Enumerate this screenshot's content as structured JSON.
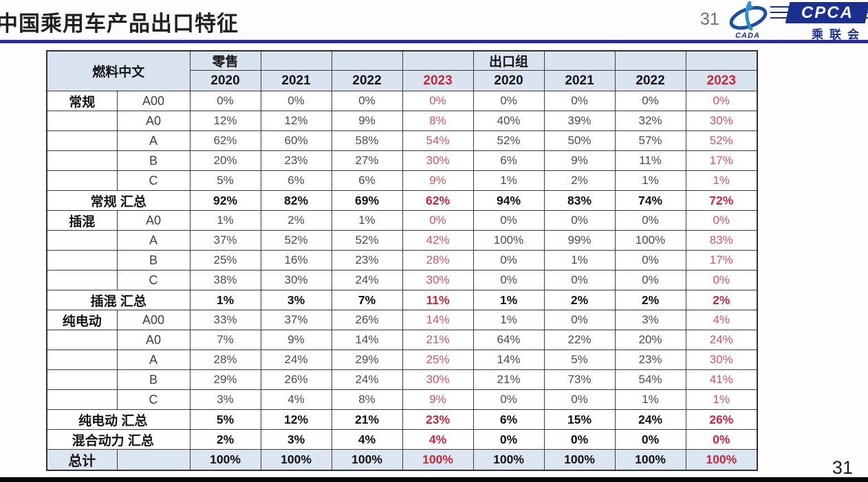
{
  "slide": {
    "title": "中国乘用车产品出口特征",
    "page_number_top": "31",
    "page_number_bottom": "31"
  },
  "logos": {
    "cada_text": "CADA",
    "cpca_acronym": "CPCA",
    "cpca_chinese": "乘联会"
  },
  "colors": {
    "divider_navy": "#2b2b91",
    "logo_navy": "#1b2f8f",
    "header_bg": "#dae3f0",
    "total_row_bg": "#dce6f3",
    "value_gray": "#4a4a4a",
    "red_bold": "#c2293c",
    "red_soft": "#cb5560"
  },
  "table": {
    "header": {
      "fuel_label": "燃料中文",
      "retail_label": "零售",
      "export_label": "出口组",
      "retail_years": [
        "2020",
        "2021",
        "2022",
        "2023"
      ],
      "export_years": [
        "2020",
        "2021",
        "2022",
        "2023"
      ]
    },
    "rows": [
      {
        "type": "group",
        "label": "常规",
        "size": "A00",
        "retail": [
          "0%",
          "0%",
          "0%",
          "0%"
        ],
        "export": [
          "0%",
          "0%",
          "0%",
          "0%"
        ]
      },
      {
        "type": "item",
        "label": "",
        "size": "A0",
        "retail": [
          "12%",
          "12%",
          "9%",
          "8%"
        ],
        "export": [
          "40%",
          "39%",
          "32%",
          "30%"
        ]
      },
      {
        "type": "item",
        "label": "",
        "size": "A",
        "retail": [
          "62%",
          "60%",
          "58%",
          "54%"
        ],
        "export": [
          "52%",
          "50%",
          "57%",
          "52%"
        ]
      },
      {
        "type": "item",
        "label": "",
        "size": "B",
        "retail": [
          "20%",
          "23%",
          "27%",
          "30%"
        ],
        "export": [
          "6%",
          "9%",
          "11%",
          "17%"
        ]
      },
      {
        "type": "item",
        "label": "",
        "size": "C",
        "retail": [
          "5%",
          "6%",
          "6%",
          "9%"
        ],
        "export": [
          "1%",
          "2%",
          "1%",
          "1%"
        ]
      },
      {
        "type": "subtotal",
        "label": "常规 汇总",
        "size": "",
        "retail": [
          "92%",
          "82%",
          "69%",
          "62%"
        ],
        "export": [
          "94%",
          "83%",
          "74%",
          "72%"
        ]
      },
      {
        "type": "group",
        "label": "插混",
        "size": "A0",
        "retail": [
          "1%",
          "2%",
          "1%",
          "0%"
        ],
        "export": [
          "0%",
          "0%",
          "0%",
          "0%"
        ]
      },
      {
        "type": "item",
        "label": "",
        "size": "A",
        "retail": [
          "37%",
          "52%",
          "52%",
          "42%"
        ],
        "export": [
          "100%",
          "99%",
          "100%",
          "83%"
        ]
      },
      {
        "type": "item",
        "label": "",
        "size": "B",
        "retail": [
          "25%",
          "16%",
          "23%",
          "28%"
        ],
        "export": [
          "0%",
          "1%",
          "0%",
          "17%"
        ]
      },
      {
        "type": "item",
        "label": "",
        "size": "C",
        "retail": [
          "38%",
          "30%",
          "24%",
          "30%"
        ],
        "export": [
          "0%",
          "0%",
          "0%",
          "0%"
        ]
      },
      {
        "type": "subtotal",
        "label": "插混 汇总",
        "size": "",
        "retail": [
          "1%",
          "3%",
          "7%",
          "11%"
        ],
        "export": [
          "1%",
          "2%",
          "2%",
          "2%"
        ]
      },
      {
        "type": "group",
        "label": "纯电动",
        "size": "A00",
        "retail": [
          "33%",
          "37%",
          "26%",
          "14%"
        ],
        "export": [
          "1%",
          "0%",
          "3%",
          "4%"
        ]
      },
      {
        "type": "item",
        "label": "",
        "size": "A0",
        "retail": [
          "7%",
          "9%",
          "14%",
          "21%"
        ],
        "export": [
          "64%",
          "22%",
          "20%",
          "24%"
        ]
      },
      {
        "type": "item",
        "label": "",
        "size": "A",
        "retail": [
          "28%",
          "24%",
          "29%",
          "25%"
        ],
        "export": [
          "14%",
          "5%",
          "23%",
          "30%"
        ]
      },
      {
        "type": "item",
        "label": "",
        "size": "B",
        "retail": [
          "29%",
          "26%",
          "24%",
          "30%"
        ],
        "export": [
          "21%",
          "73%",
          "54%",
          "41%"
        ]
      },
      {
        "type": "item",
        "label": "",
        "size": "C",
        "retail": [
          "3%",
          "4%",
          "8%",
          "9%"
        ],
        "export": [
          "0%",
          "0%",
          "1%",
          "1%"
        ]
      },
      {
        "type": "subtotal",
        "label": "纯电动 汇总",
        "size": "",
        "clip": true,
        "retail": [
          "5%",
          "12%",
          "21%",
          "23%"
        ],
        "export": [
          "6%",
          "15%",
          "24%",
          "26%"
        ]
      },
      {
        "type": "subtotal",
        "label": "混合动力 汇总",
        "size": "",
        "clip": true,
        "retail": [
          "2%",
          "3%",
          "4%",
          "4%"
        ],
        "export": [
          "0%",
          "0%",
          "0%",
          "0%"
        ]
      },
      {
        "type": "total",
        "label": "总计",
        "size": "",
        "retail": [
          "100%",
          "100%",
          "100%",
          "100%"
        ],
        "export": [
          "100%",
          "100%",
          "100%",
          "100%"
        ]
      }
    ]
  }
}
